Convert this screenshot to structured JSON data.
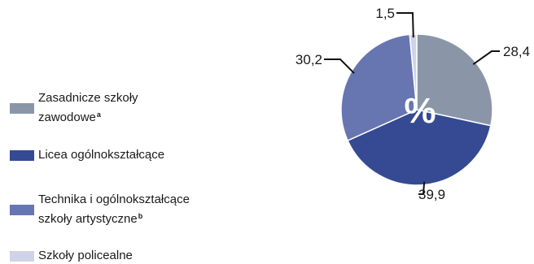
{
  "chart_data": {
    "type": "pie",
    "center_label": "%",
    "slices": [
      {
        "name": "Zasadnicze szkoły zawodowe",
        "note_mark": "a",
        "value": 28.4,
        "value_label": "28,4",
        "color": "#8a96a8"
      },
      {
        "name": "Licea ogólnokształcące",
        "note_mark": "",
        "value": 39.9,
        "value_label": "39,9",
        "color": "#354a93"
      },
      {
        "name": "Technika i ogólnokształcące szkoły artystyczne",
        "note_mark": "b",
        "value": 30.2,
        "value_label": "30,2",
        "color": "#6776b0"
      },
      {
        "name": "Szkoły policealne",
        "note_mark": "",
        "value": 1.5,
        "value_label": "1,5",
        "color": "#ced3e7"
      }
    ]
  },
  "legend": {
    "items": [
      {
        "line1": "Zasadnicze szkoły",
        "line2": "zawodowe",
        "sup": "a",
        "color": "#8a96a8"
      },
      {
        "line1": "Licea ogólnokształcące",
        "line2": "",
        "sup": "",
        "color": "#354a93"
      },
      {
        "line1": "Technika i ogólnokształcące",
        "line2": "szkoły artystyczne",
        "sup": "b",
        "color": "#6776b0"
      },
      {
        "line1": "Szkoły policealne",
        "line2": "",
        "sup": "",
        "color": "#ced3e7"
      }
    ]
  }
}
